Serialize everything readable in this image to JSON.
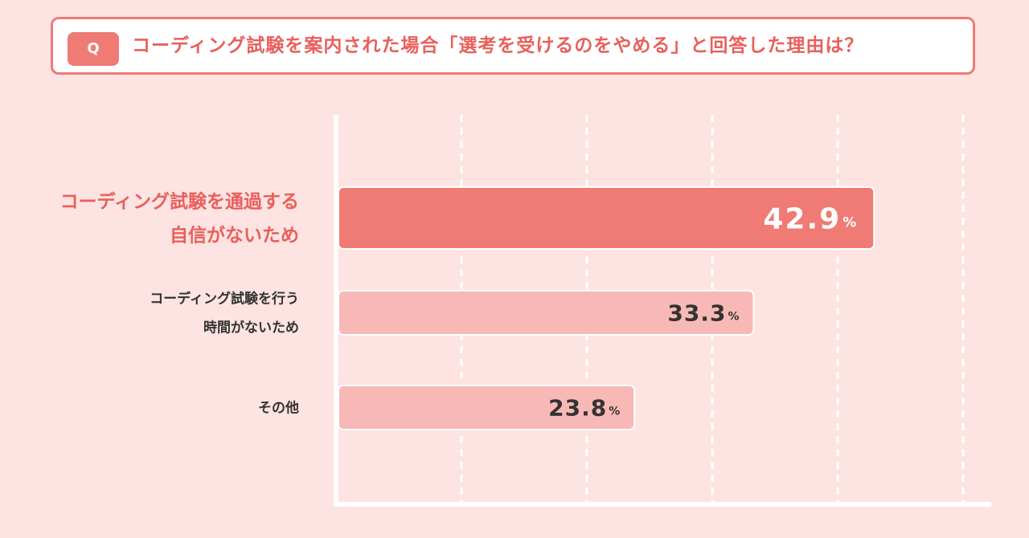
{
  "question": {
    "badge": "Q",
    "text": "コーディング試験を案内された場合「選考を受けるのをやめる」と回答した理由は？"
  },
  "colors": {
    "accent": "#f07a74",
    "highlight_text": "#e8605c",
    "bar_secondary": "#f8b9b6",
    "background": "#fde3e1"
  },
  "chart_data": {
    "type": "bar",
    "orientation": "horizontal",
    "unit": "%",
    "xlim": [
      0,
      50
    ],
    "grid": true,
    "categories": [
      [
        "コーディング試験を通過する",
        "自信がないため"
      ],
      [
        "コーディング試験を行う",
        "時間がないため"
      ],
      [
        "その他"
      ]
    ],
    "values": [
      42.9,
      33.3,
      23.8
    ],
    "value_labels": [
      "42.9",
      "33.3",
      "23.8"
    ],
    "highlight_index": 0
  }
}
